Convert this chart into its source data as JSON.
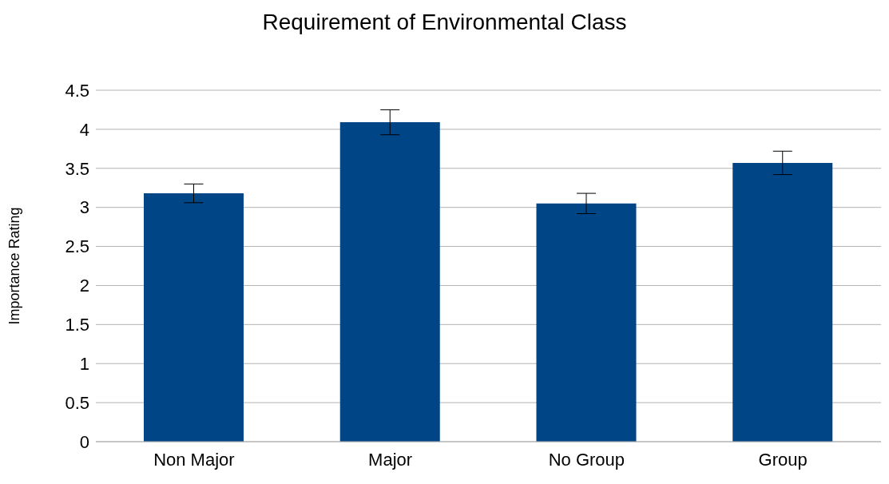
{
  "chart_data": {
    "type": "bar",
    "title": "Requirement of Environmental Class",
    "ylabel": "Importance Rating",
    "categories": [
      "Non Major",
      "Major",
      "No Group",
      "Group"
    ],
    "values": [
      3.18,
      4.09,
      3.05,
      3.57
    ],
    "errors": [
      0.12,
      0.16,
      0.13,
      0.15
    ],
    "color": "#004586",
    "ylim": [
      0,
      4.5
    ],
    "yticks": [
      0,
      0.5,
      1,
      1.5,
      2,
      2.5,
      3,
      3.5,
      4,
      4.5
    ],
    "grid": "y",
    "legend": false
  }
}
